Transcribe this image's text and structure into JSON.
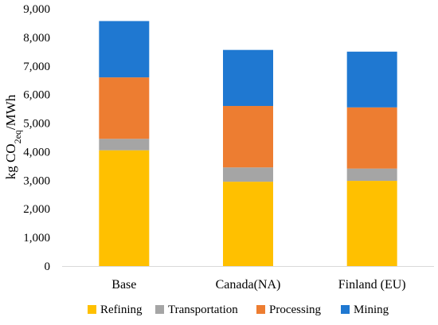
{
  "chart_data": {
    "type": "bar",
    "stacked": true,
    "categories": [
      "Base",
      "Canada(NA)",
      "Finland (EU)"
    ],
    "series": [
      {
        "name": "Refining",
        "color": "#FFC000",
        "values": [
          4050,
          2950,
          2980
        ]
      },
      {
        "name": "Transportation",
        "color": "#A5A5A5",
        "values": [
          400,
          500,
          430
        ]
      },
      {
        "name": "Processing",
        "color": "#ED7D31",
        "values": [
          2150,
          2150,
          2140
        ]
      },
      {
        "name": "Mining",
        "color": "#1F78D1",
        "values": [
          1970,
          1960,
          1950
        ]
      }
    ],
    "ylabel": {
      "prefix": "kg CO",
      "subscript": "2eq",
      "suffix": "/MWh"
    },
    "ylim": [
      0,
      9000
    ],
    "yticks": [
      "0",
      "1,000",
      "2,000",
      "3,000",
      "4,000",
      "5,000",
      "6,000",
      "7,000",
      "8,000",
      "9,000"
    ],
    "grid": false,
    "legend_position": "bottom"
  }
}
